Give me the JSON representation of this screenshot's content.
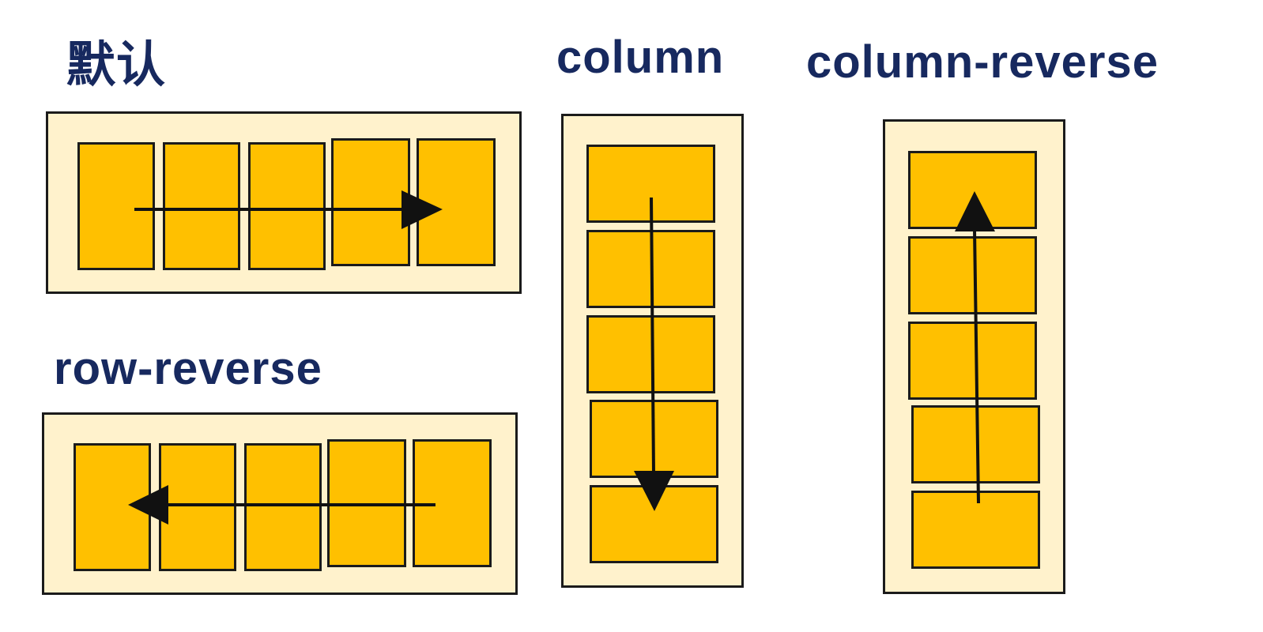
{
  "panels": {
    "default": {
      "label": "默认"
    },
    "row_reverse": {
      "label": "row-reverse"
    },
    "column": {
      "label": "column"
    },
    "column_reverse": {
      "label": "column-reverse"
    }
  },
  "colors": {
    "title": "#17295f",
    "container_fill": "#fff2cc",
    "item_fill": "#ffc000",
    "outline": "#1b1b1b",
    "arrow": "#111111"
  }
}
